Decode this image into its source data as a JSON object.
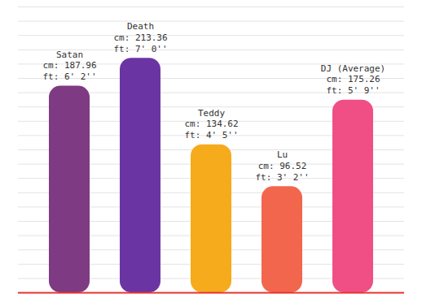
{
  "chart_data": {
    "type": "bar",
    "categories": [
      "Satan",
      "Death",
      "Teddy",
      "Lu",
      "DJ (Average)"
    ],
    "values": [
      187.96,
      213.36,
      134.62,
      96.52,
      175.26
    ],
    "value_labels": [
      "cm: 187.96",
      "cm: 213.36",
      "cm: 134.62",
      "cm: 96.52",
      "cm: 175.26"
    ],
    "ft_labels": [
      "ft: 6' 2''",
      "ft: 7' 0''",
      "ft: 4' 5''",
      "ft: 3' 2''",
      "ft: 5' 9''"
    ],
    "colors": [
      "#7e3a82",
      "#6a35a3",
      "#f6ab1c",
      "#f2664e",
      "#f04f86"
    ],
    "ylim": [
      0,
      260
    ],
    "yticks": [
      0,
      13,
      26,
      39,
      52,
      65,
      78,
      91,
      104,
      117,
      130,
      143,
      156,
      169,
      182,
      195,
      208,
      221,
      234,
      247,
      260
    ],
    "grid": true,
    "data_labels": true,
    "tick_labels": false
  }
}
